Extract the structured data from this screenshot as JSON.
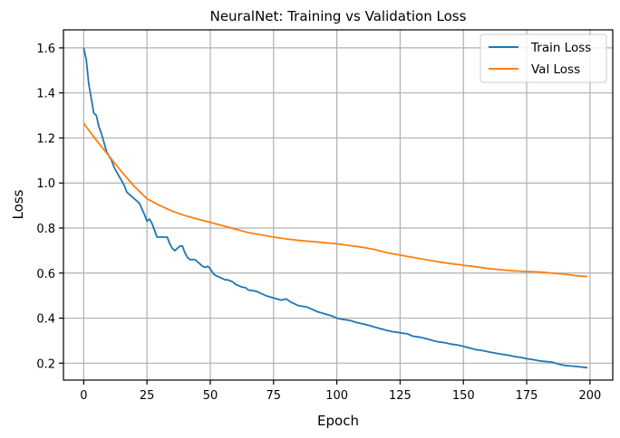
{
  "chart_data": {
    "type": "line",
    "title": "NeuralNet: Training vs Validation Loss",
    "xlabel": "Epoch",
    "ylabel": "Loss",
    "xlim": [
      -8,
      209
    ],
    "ylim": [
      0.125,
      1.68
    ],
    "xticks": [
      0,
      25,
      50,
      75,
      100,
      125,
      150,
      175,
      200
    ],
    "yticks": [
      0.2,
      0.4,
      0.6,
      0.8,
      1.0,
      1.2,
      1.4,
      1.6
    ],
    "grid": true,
    "legend_position": "top-right",
    "series": [
      {
        "name": "Train Loss",
        "color": "#1f77b4",
        "x": [
          0,
          1,
          2,
          4,
          5,
          6,
          7,
          8,
          9,
          10,
          11,
          12,
          13,
          14,
          15,
          16,
          17,
          18,
          20,
          22,
          24,
          25,
          26,
          27,
          28,
          29,
          30,
          31,
          33,
          34,
          35,
          36,
          37,
          38,
          39,
          40,
          41,
          42,
          43,
          44,
          45,
          46,
          47,
          48,
          49,
          50,
          51,
          52,
          53,
          54,
          55,
          56,
          57,
          58,
          59,
          60,
          62,
          64,
          65,
          68,
          70,
          72,
          75,
          78,
          80,
          82,
          85,
          88,
          90,
          92,
          95,
          98,
          100,
          102,
          105,
          108,
          110,
          112,
          115,
          120,
          122,
          125,
          128,
          130,
          133,
          135,
          138,
          140,
          143,
          145,
          148,
          150,
          155,
          158,
          160,
          165,
          168,
          170,
          173,
          175,
          178,
          180,
          185,
          188,
          190,
          195,
          199
        ],
        "y": [
          1.6,
          1.55,
          1.44,
          1.31,
          1.3,
          1.25,
          1.22,
          1.18,
          1.14,
          1.12,
          1.1,
          1.07,
          1.05,
          1.03,
          1.01,
          0.99,
          0.96,
          0.95,
          0.93,
          0.91,
          0.86,
          0.83,
          0.84,
          0.82,
          0.79,
          0.76,
          0.76,
          0.76,
          0.76,
          0.73,
          0.71,
          0.7,
          0.71,
          0.72,
          0.72,
          0.69,
          0.67,
          0.66,
          0.66,
          0.66,
          0.65,
          0.64,
          0.63,
          0.625,
          0.63,
          0.62,
          0.6,
          0.59,
          0.585,
          0.58,
          0.575,
          0.57,
          0.57,
          0.565,
          0.56,
          0.55,
          0.54,
          0.535,
          0.525,
          0.52,
          0.51,
          0.5,
          0.49,
          0.48,
          0.485,
          0.47,
          0.455,
          0.45,
          0.44,
          0.43,
          0.42,
          0.41,
          0.4,
          0.395,
          0.39,
          0.38,
          0.375,
          0.37,
          0.36,
          0.345,
          0.34,
          0.335,
          0.33,
          0.32,
          0.315,
          0.31,
          0.3,
          0.295,
          0.29,
          0.285,
          0.28,
          0.275,
          0.26,
          0.255,
          0.25,
          0.24,
          0.235,
          0.23,
          0.225,
          0.22,
          0.215,
          0.21,
          0.205,
          0.195,
          0.19,
          0.185,
          0.18
        ]
      },
      {
        "name": "Val Loss",
        "color": "#ff7f0e",
        "x": [
          0,
          5,
          10,
          15,
          20,
          25,
          30,
          35,
          40,
          45,
          50,
          55,
          60,
          65,
          70,
          75,
          80,
          85,
          90,
          95,
          100,
          105,
          110,
          115,
          120,
          125,
          130,
          135,
          140,
          145,
          150,
          155,
          160,
          165,
          170,
          175,
          180,
          185,
          190,
          195,
          199
        ],
        "y": [
          1.265,
          1.19,
          1.12,
          1.05,
          0.985,
          0.93,
          0.9,
          0.875,
          0.855,
          0.84,
          0.825,
          0.81,
          0.795,
          0.78,
          0.77,
          0.76,
          0.752,
          0.745,
          0.74,
          0.735,
          0.73,
          0.722,
          0.715,
          0.705,
          0.69,
          0.68,
          0.67,
          0.66,
          0.65,
          0.642,
          0.635,
          0.628,
          0.62,
          0.615,
          0.61,
          0.607,
          0.605,
          0.6,
          0.595,
          0.588,
          0.585
        ]
      }
    ]
  }
}
